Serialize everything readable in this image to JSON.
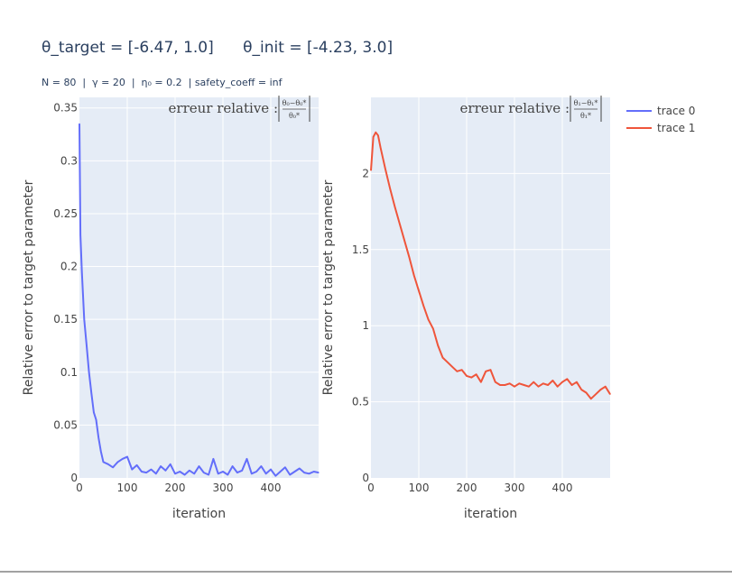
{
  "figure": {
    "title": "θ_target = [-6.47, 1.0]      θ_init = [-4.23, 3.0]",
    "subtitle": "N = 80  |  γ = 20  |  η₀ = 0.2  | safety_coeff = inf"
  },
  "colors": {
    "plot_bg": "#e5ecf6",
    "grid": "#ffffff",
    "trace0": "#636efa",
    "trace1": "#ef553b",
    "text": "#444444"
  },
  "legend": {
    "position": "top-right",
    "items": [
      {
        "name": "trace 0",
        "color": "#636efa"
      },
      {
        "name": "trace 1",
        "color": "#ef553b"
      }
    ]
  },
  "chart_data": [
    {
      "type": "line",
      "xlabel": "iteration",
      "ylabel": "Relative error to target parameter",
      "xlim": [
        0,
        500
      ],
      "ylim": [
        0,
        0.36
      ],
      "xticks": [
        0,
        100,
        200,
        300,
        400
      ],
      "yticks": [
        0,
        0.05,
        0.1,
        0.15,
        0.2,
        0.25,
        0.3,
        0.35
      ],
      "ytick_labels": [
        "0",
        "0.05",
        "0.1",
        "0.15",
        "0.2",
        "0.25",
        "0.3",
        "0.35"
      ],
      "grid": true,
      "annotation": {
        "label": "erreur relative :",
        "num": "θ₀−θ₀*",
        "den": "θ₀*"
      },
      "series": [
        {
          "name": "trace 0",
          "color": "#636efa",
          "x": [
            0,
            2,
            5,
            10,
            15,
            20,
            25,
            30,
            35,
            40,
            45,
            50,
            60,
            70,
            80,
            90,
            100,
            110,
            120,
            130,
            140,
            150,
            160,
            170,
            180,
            190,
            200,
            210,
            220,
            230,
            240,
            250,
            260,
            270,
            280,
            290,
            300,
            310,
            320,
            330,
            340,
            350,
            360,
            370,
            380,
            390,
            400,
            410,
            420,
            430,
            440,
            450,
            460,
            470,
            480,
            490,
            500
          ],
          "values": [
            0.335,
            0.23,
            0.195,
            0.15,
            0.125,
            0.1,
            0.08,
            0.062,
            0.055,
            0.038,
            0.025,
            0.015,
            0.013,
            0.01,
            0.015,
            0.018,
            0.02,
            0.008,
            0.012,
            0.006,
            0.005,
            0.008,
            0.004,
            0.011,
            0.007,
            0.013,
            0.004,
            0.006,
            0.003,
            0.007,
            0.004,
            0.011,
            0.005,
            0.003,
            0.018,
            0.004,
            0.006,
            0.003,
            0.011,
            0.005,
            0.007,
            0.018,
            0.004,
            0.006,
            0.011,
            0.004,
            0.008,
            0.002,
            0.006,
            0.01,
            0.003,
            0.006,
            0.009,
            0.005,
            0.004,
            0.006,
            0.005
          ]
        }
      ]
    },
    {
      "type": "line",
      "xlabel": "iteration",
      "ylabel": "Relative error to target parameter",
      "xlim": [
        0,
        500
      ],
      "ylim": [
        0,
        2.5
      ],
      "xticks": [
        0,
        100,
        200,
        300,
        400
      ],
      "yticks": [
        0,
        0.5,
        1,
        1.5,
        2
      ],
      "ytick_labels": [
        "0",
        "0.5",
        "1",
        "1.5",
        "2"
      ],
      "grid": true,
      "annotation": {
        "label": "erreur relative :",
        "num": "θ₁−θ₁*",
        "den": "θ₁*"
      },
      "series": [
        {
          "name": "trace 1",
          "color": "#ef553b",
          "x": [
            0,
            5,
            10,
            15,
            20,
            30,
            40,
            50,
            60,
            70,
            80,
            90,
            100,
            110,
            120,
            130,
            140,
            150,
            160,
            170,
            180,
            190,
            200,
            210,
            220,
            230,
            240,
            250,
            260,
            270,
            280,
            290,
            300,
            310,
            320,
            330,
            340,
            350,
            360,
            370,
            380,
            390,
            400,
            410,
            420,
            430,
            440,
            450,
            460,
            470,
            480,
            490,
            500
          ],
          "values": [
            2.02,
            2.24,
            2.27,
            2.25,
            2.17,
            2.03,
            1.9,
            1.78,
            1.67,
            1.56,
            1.45,
            1.33,
            1.23,
            1.13,
            1.04,
            0.98,
            0.87,
            0.79,
            0.76,
            0.73,
            0.7,
            0.71,
            0.67,
            0.66,
            0.68,
            0.63,
            0.7,
            0.71,
            0.63,
            0.61,
            0.61,
            0.62,
            0.6,
            0.62,
            0.61,
            0.6,
            0.63,
            0.6,
            0.62,
            0.61,
            0.64,
            0.6,
            0.63,
            0.65,
            0.61,
            0.63,
            0.58,
            0.56,
            0.52,
            0.55,
            0.58,
            0.6,
            0.55
          ]
        }
      ]
    }
  ]
}
